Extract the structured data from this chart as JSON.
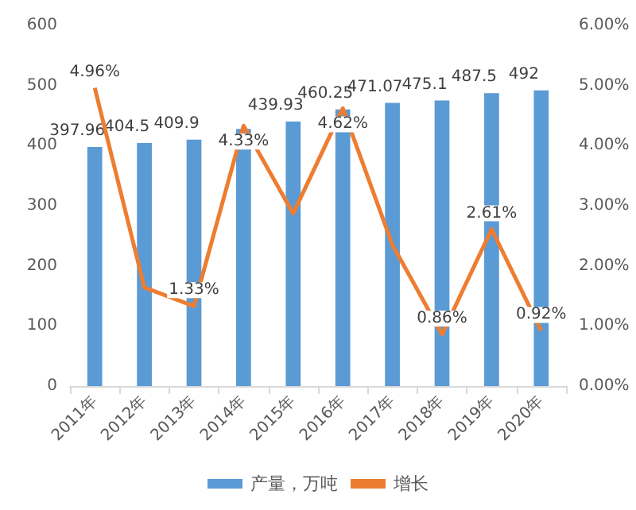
{
  "chart_data": {
    "type": "bar",
    "categories": [
      "2011年",
      "2012年",
      "2013年",
      "2014年",
      "2015年",
      "2016年",
      "2017年",
      "2018年",
      "2019年",
      "2020年"
    ],
    "series": [
      {
        "name": "产量，万吨",
        "type": "bar",
        "color": "#5b9bd5",
        "values": [
          397.96,
          404.5,
          409.9,
          428,
          439.93,
          460.25,
          471.07,
          475.1,
          487.5,
          492
        ],
        "value_labels": [
          "397.96",
          "404.5",
          "409.9",
          null,
          "439.93",
          "460.25",
          "471.07",
          "475.1",
          "487.5",
          "492"
        ]
      },
      {
        "name": "增长",
        "type": "line",
        "axis": "y2",
        "color": "#ed7d31",
        "values": [
          4.96,
          1.64,
          1.33,
          4.33,
          2.87,
          4.62,
          2.35,
          0.86,
          2.61,
          0.92
        ],
        "value_labels": [
          "4.96%",
          null,
          "1.33%",
          "4.33%",
          null,
          "4.62%",
          null,
          "0.86%",
          "2.61%",
          "0.92%"
        ]
      }
    ],
    "ylim": [
      0,
      600
    ],
    "yticks": [
      0,
      100,
      200,
      300,
      400,
      500,
      600
    ],
    "y2lim": [
      0,
      6
    ],
    "y2ticks": [
      {
        "value": 0,
        "label": "0.00%"
      },
      {
        "value": 1,
        "label": "1.00%"
      },
      {
        "value": 2,
        "label": "2.00%"
      },
      {
        "value": 3,
        "label": "3.00%"
      },
      {
        "value": 4,
        "label": "4.00%"
      },
      {
        "value": 5,
        "label": "5.00%"
      },
      {
        "value": 6,
        "label": "6.00%"
      }
    ],
    "grid": false,
    "legend": "bottom",
    "marker": "none",
    "line_style": "solid"
  }
}
